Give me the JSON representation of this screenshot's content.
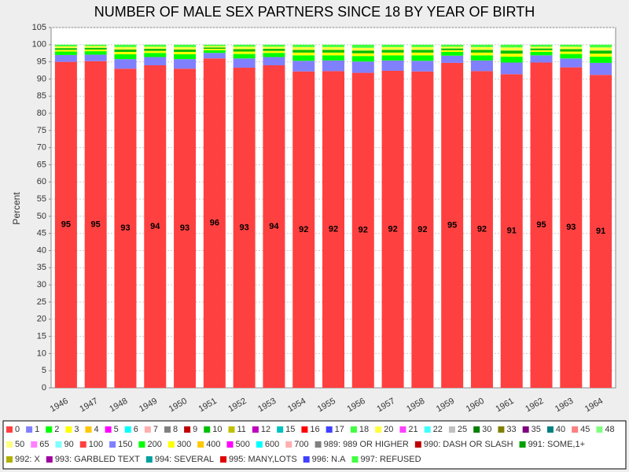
{
  "chart_data": {
    "type": "stacked_bar",
    "title": "NUMBER OF MALE SEX PARTNERS SINCE 18 BY YEAR OF BIRTH",
    "y_label": "Percent",
    "categories": [
      "1946",
      "1947",
      "1948",
      "1949",
      "1950",
      "1951",
      "1952",
      "1953",
      "1954",
      "1955",
      "1956",
      "1957",
      "1958",
      "1959",
      "1960",
      "1961",
      "1962",
      "1963",
      "1964"
    ],
    "ylim": [
      0,
      105
    ],
    "yticks": [
      0,
      5,
      10,
      15,
      20,
      25,
      30,
      35,
      40,
      45,
      50,
      55,
      60,
      65,
      70,
      75,
      80,
      85,
      90,
      95,
      100,
      105
    ],
    "grid": true,
    "legend": "bottom",
    "series": [
      {
        "name": "0",
        "color": "#ff4040",
        "values": [
          95.0,
          95.2,
          93.0,
          94.0,
          93.0,
          96.0,
          93.3,
          94.0,
          92.2,
          92.3,
          91.8,
          92.4,
          92.2,
          94.7,
          92.3,
          91.4,
          94.8,
          93.4,
          91.2
        ],
        "value_labels": [
          "95",
          "95",
          "93",
          "94",
          "93",
          "96",
          "93",
          "94",
          "92",
          "92",
          "92",
          "92",
          "92",
          "95",
          "92",
          "91",
          "95",
          "93",
          "91"
        ]
      },
      {
        "name": "1",
        "color": "#8080ff",
        "values": [
          2.0,
          1.9,
          2.8,
          2.4,
          2.8,
          1.6,
          2.7,
          2.4,
          3.1,
          3.1,
          3.3,
          3.0,
          3.1,
          2.1,
          3.1,
          3.4,
          2.1,
          2.6,
          3.5
        ]
      },
      {
        "name": "2",
        "color": "#00ff00",
        "values": [
          1.0,
          1.0,
          1.4,
          1.2,
          1.4,
          0.8,
          1.3,
          1.2,
          1.6,
          1.5,
          1.6,
          1.5,
          1.6,
          1.1,
          1.5,
          1.7,
          1.0,
          1.3,
          1.8
        ]
      },
      {
        "name": "3",
        "color": "#ffff00",
        "values": [
          0.5,
          0.5,
          0.7,
          0.6,
          0.7,
          0.4,
          0.7,
          0.6,
          0.8,
          0.8,
          0.8,
          0.8,
          0.8,
          0.5,
          0.8,
          0.9,
          0.5,
          0.7,
          0.9
        ]
      },
      {
        "name": "4",
        "color": "#ffc800",
        "values": [
          0,
          0,
          0,
          0,
          0,
          0,
          0,
          0,
          0,
          0,
          0,
          0,
          0,
          0,
          0,
          0,
          0,
          0,
          0
        ]
      },
      {
        "name": "5",
        "color": "#ff00ff",
        "values": [
          0,
          0,
          0,
          0,
          0,
          0,
          0,
          0,
          0,
          0,
          0,
          0,
          0,
          0,
          0,
          0,
          0,
          0,
          0
        ]
      },
      {
        "name": "6",
        "color": "#00ffff",
        "values": [
          0,
          0,
          0,
          0,
          0,
          0,
          0,
          0,
          0,
          0,
          0,
          0,
          0,
          0,
          0,
          0,
          0,
          0,
          0
        ]
      },
      {
        "name": "7",
        "color": "#ffafaf",
        "values": [
          0,
          0,
          0,
          0,
          0,
          0,
          0,
          0,
          0,
          0,
          0,
          0,
          0,
          0,
          0,
          0,
          0,
          0,
          0
        ]
      },
      {
        "name": "8",
        "color": "#808080",
        "values": [
          0,
          0,
          0,
          0,
          0,
          0,
          0,
          0,
          0,
          0,
          0,
          0,
          0,
          0,
          0,
          0,
          0,
          0,
          0
        ]
      },
      {
        "name": "9",
        "color": "#c00000",
        "values": [
          0,
          0,
          0,
          0,
          0,
          0,
          0,
          0,
          0,
          0,
          0,
          0,
          0,
          0,
          0,
          0,
          0,
          0,
          0
        ]
      },
      {
        "name": "10",
        "color": "#00c000",
        "values": [
          0.5,
          0.5,
          0.7,
          0.6,
          0.7,
          0.4,
          0.7,
          0.6,
          0.8,
          0.8,
          0.8,
          0.8,
          0.8,
          0.5,
          0.8,
          0.9,
          0.5,
          0.7,
          0.9
        ]
      },
      {
        "name": "11",
        "color": "#c0c000",
        "values": [
          0,
          0,
          0,
          0,
          0,
          0,
          0,
          0,
          0,
          0,
          0,
          0,
          0,
          0,
          0,
          0,
          0,
          0,
          0
        ]
      },
      {
        "name": "12",
        "color": "#c000c0",
        "values": [
          0,
          0,
          0,
          0,
          0,
          0,
          0,
          0,
          0,
          0,
          0,
          0,
          0,
          0,
          0,
          0,
          0,
          0,
          0
        ]
      },
      {
        "name": "15",
        "color": "#00c0c0",
        "values": [
          0,
          0,
          0,
          0,
          0,
          0,
          0,
          0,
          0,
          0,
          0,
          0,
          0,
          0,
          0,
          0,
          0,
          0,
          0
        ]
      },
      {
        "name": "16",
        "color": "#ff0000",
        "values": [
          0,
          0,
          0,
          0,
          0,
          0,
          0,
          0,
          0,
          0,
          0,
          0,
          0,
          0,
          0,
          0,
          0,
          0,
          0
        ]
      },
      {
        "name": "17",
        "color": "#4040ff",
        "values": [
          0,
          0,
          0,
          0,
          0,
          0,
          0,
          0,
          0,
          0,
          0,
          0,
          0,
          0,
          0,
          0,
          0,
          0,
          0
        ]
      },
      {
        "name": "18",
        "color": "#40ff40",
        "values": [
          0,
          0,
          0,
          0,
          0,
          0,
          0,
          0,
          0,
          0,
          0,
          0,
          0,
          0,
          0,
          0,
          0,
          0,
          0
        ]
      },
      {
        "name": "20",
        "color": "#ffff40",
        "values": [
          0.5,
          0.5,
          0.7,
          0.6,
          0.7,
          0.4,
          0.7,
          0.6,
          0.8,
          0.8,
          0.8,
          0.8,
          0.8,
          0.5,
          0.8,
          0.9,
          0.5,
          0.7,
          0.9
        ]
      },
      {
        "name": "21",
        "color": "#ff40ff",
        "values": [
          0,
          0,
          0,
          0,
          0,
          0,
          0,
          0,
          0,
          0,
          0,
          0,
          0,
          0,
          0,
          0,
          0,
          0,
          0
        ]
      },
      {
        "name": "22",
        "color": "#40ffff",
        "values": [
          0,
          0,
          0,
          0,
          0,
          0,
          0,
          0,
          0,
          0,
          0,
          0,
          0,
          0,
          0,
          0,
          0,
          0,
          0
        ]
      },
      {
        "name": "25",
        "color": "#c0c0c0",
        "values": [
          0,
          0,
          0,
          0,
          0,
          0,
          0,
          0,
          0,
          0,
          0,
          0,
          0,
          0,
          0,
          0,
          0,
          0,
          0
        ]
      },
      {
        "name": "30",
        "color": "#008000",
        "values": [
          0,
          0,
          0,
          0,
          0,
          0,
          0,
          0,
          0,
          0,
          0,
          0,
          0,
          0,
          0,
          0,
          0,
          0,
          0
        ]
      },
      {
        "name": "33",
        "color": "#808000",
        "values": [
          0,
          0,
          0,
          0,
          0,
          0,
          0,
          0,
          0,
          0,
          0,
          0,
          0,
          0,
          0,
          0,
          0,
          0,
          0
        ]
      },
      {
        "name": "35",
        "color": "#800080",
        "values": [
          0,
          0,
          0,
          0,
          0,
          0,
          0,
          0,
          0,
          0,
          0,
          0,
          0,
          0,
          0,
          0,
          0,
          0,
          0
        ]
      },
      {
        "name": "40",
        "color": "#008080",
        "values": [
          0,
          0,
          0,
          0,
          0,
          0,
          0,
          0,
          0,
          0,
          0,
          0,
          0,
          0,
          0,
          0,
          0,
          0,
          0
        ]
      },
      {
        "name": "45",
        "color": "#ff8080",
        "values": [
          0,
          0,
          0,
          0,
          0,
          0,
          0,
          0,
          0,
          0,
          0,
          0,
          0,
          0,
          0,
          0,
          0,
          0,
          0
        ]
      },
      {
        "name": "48",
        "color": "#80ff80",
        "values": [
          0,
          0,
          0,
          0,
          0,
          0,
          0,
          0,
          0,
          0,
          0,
          0,
          0,
          0,
          0,
          0,
          0,
          0,
          0
        ]
      },
      {
        "name": "50",
        "color": "#ffff80",
        "values": [
          0,
          0,
          0,
          0,
          0,
          0,
          0,
          0,
          0,
          0,
          0,
          0,
          0,
          0,
          0,
          0,
          0,
          0,
          0
        ]
      },
      {
        "name": "65",
        "color": "#ff80ff",
        "values": [
          0,
          0,
          0,
          0,
          0,
          0,
          0,
          0,
          0,
          0,
          0,
          0,
          0,
          0,
          0,
          0,
          0,
          0,
          0
        ]
      },
      {
        "name": "90",
        "color": "#80ffff",
        "values": [
          0,
          0,
          0,
          0,
          0,
          0,
          0,
          0,
          0,
          0,
          0,
          0,
          0,
          0,
          0,
          0,
          0,
          0,
          0
        ]
      },
      {
        "name": "100",
        "color": "#ff4040",
        "values": [
          0,
          0,
          0,
          0,
          0,
          0,
          0,
          0,
          0,
          0,
          0,
          0,
          0,
          0,
          0,
          0,
          0,
          0,
          0
        ]
      },
      {
        "name": "150",
        "color": "#8080ff",
        "values": [
          0,
          0,
          0,
          0,
          0,
          0,
          0,
          0,
          0,
          0,
          0,
          0,
          0,
          0,
          0,
          0,
          0,
          0,
          0
        ]
      },
      {
        "name": "200",
        "color": "#00ff00",
        "values": [
          0,
          0,
          0,
          0,
          0,
          0,
          0,
          0,
          0,
          0,
          0,
          0,
          0,
          0,
          0,
          0,
          0,
          0,
          0
        ]
      },
      {
        "name": "300",
        "color": "#ffff00",
        "values": [
          0,
          0,
          0,
          0,
          0,
          0,
          0,
          0,
          0,
          0,
          0,
          0,
          0,
          0,
          0,
          0,
          0,
          0,
          0
        ]
      },
      {
        "name": "400",
        "color": "#ffc800",
        "values": [
          0,
          0,
          0,
          0,
          0,
          0,
          0,
          0,
          0,
          0,
          0,
          0,
          0,
          0,
          0,
          0,
          0,
          0,
          0
        ]
      },
      {
        "name": "500",
        "color": "#ff00ff",
        "values": [
          0,
          0,
          0,
          0,
          0,
          0,
          0,
          0,
          0,
          0,
          0,
          0,
          0,
          0,
          0,
          0,
          0,
          0,
          0
        ]
      },
      {
        "name": "600",
        "color": "#00ffff",
        "values": [
          0,
          0,
          0,
          0,
          0,
          0,
          0,
          0,
          0,
          0,
          0,
          0,
          0,
          0,
          0,
          0,
          0,
          0,
          0
        ]
      },
      {
        "name": "700",
        "color": "#ffafaf",
        "values": [
          0,
          0,
          0,
          0,
          0,
          0,
          0,
          0,
          0,
          0,
          0,
          0,
          0,
          0,
          0,
          0,
          0,
          0,
          0
        ]
      },
      {
        "name": "989: 989 OR HIGHER",
        "color": "#808080",
        "values": [
          0,
          0,
          0,
          0,
          0,
          0,
          0,
          0,
          0,
          0,
          0,
          0,
          0,
          0,
          0,
          0,
          0,
          0,
          0
        ]
      },
      {
        "name": "990: DASH OR SLASH",
        "color": "#c00000",
        "values": [
          0,
          0,
          0,
          0,
          0,
          0,
          0,
          0,
          0,
          0,
          0,
          0,
          0,
          0,
          0,
          0,
          0,
          0,
          0
        ]
      },
      {
        "name": "991: SOME,1+",
        "color": "#00a000",
        "values": [
          0,
          0,
          0,
          0,
          0,
          0,
          0,
          0,
          0,
          0,
          0,
          0,
          0,
          0,
          0,
          0,
          0,
          0,
          0
        ]
      },
      {
        "name": "992: X",
        "color": "#b0b000",
        "values": [
          0,
          0,
          0,
          0,
          0,
          0,
          0,
          0,
          0,
          0,
          0,
          0,
          0,
          0,
          0,
          0,
          0,
          0,
          0
        ]
      },
      {
        "name": "993: GARBLED TEXT",
        "color": "#a000a0",
        "values": [
          0,
          0,
          0,
          0,
          0,
          0,
          0,
          0,
          0,
          0,
          0,
          0,
          0,
          0,
          0,
          0,
          0,
          0,
          0
        ]
      },
      {
        "name": "994: SEVERAL",
        "color": "#00a0a0",
        "values": [
          0,
          0,
          0,
          0,
          0,
          0,
          0,
          0,
          0,
          0,
          0,
          0,
          0,
          0,
          0,
          0,
          0,
          0,
          0
        ]
      },
      {
        "name": "995: MANY,LOTS",
        "color": "#e00000",
        "values": [
          0,
          0,
          0,
          0,
          0,
          0,
          0,
          0,
          0,
          0,
          0,
          0,
          0,
          0,
          0,
          0,
          0,
          0,
          0
        ]
      },
      {
        "name": "996: N.A",
        "color": "#4040ff",
        "values": [
          0,
          0,
          0,
          0,
          0,
          0,
          0,
          0,
          0,
          0,
          0,
          0,
          0,
          0,
          0,
          0,
          0,
          0,
          0
        ]
      },
      {
        "name": "997: REFUSED",
        "color": "#40ff40",
        "values": [
          0.5,
          0.4,
          0.7,
          0.6,
          0.7,
          0.4,
          0.6,
          0.6,
          0.7,
          0.7,
          0.9,
          0.7,
          0.7,
          0.6,
          0.7,
          0.8,
          0.6,
          0.6,
          0.8
        ]
      }
    ]
  }
}
